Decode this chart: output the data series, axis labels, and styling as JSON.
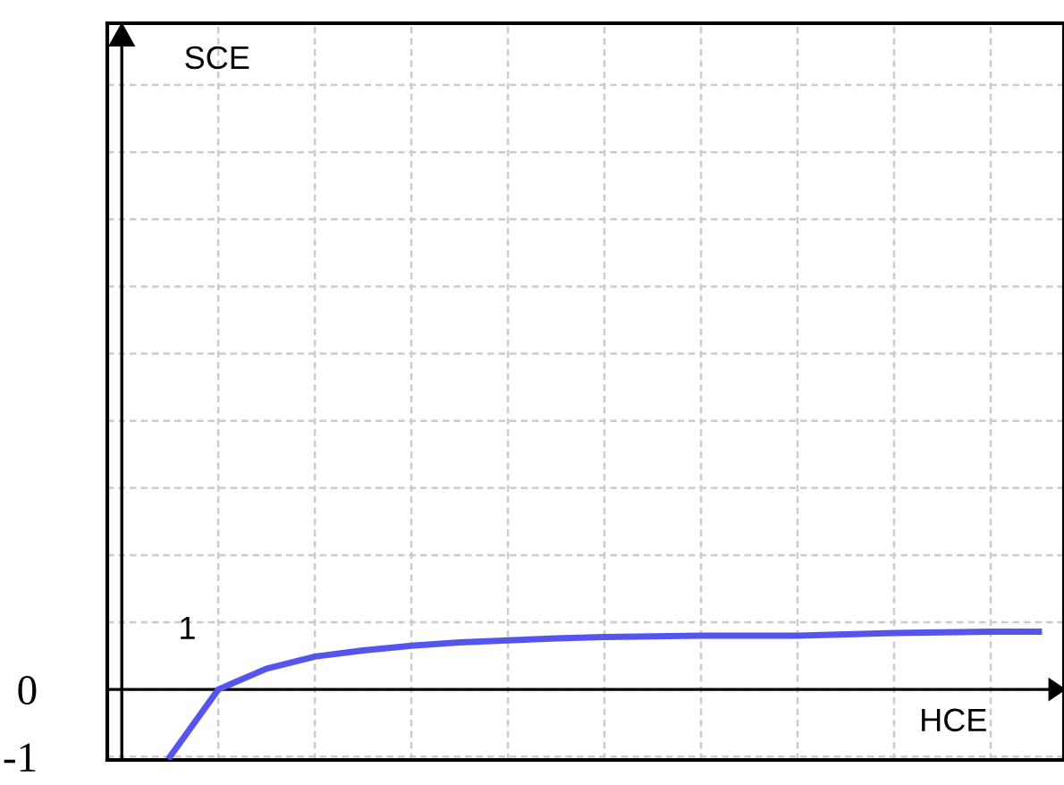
{
  "chart_data": {
    "type": "line",
    "xlabel": "HCE",
    "ylabel": "SCE",
    "annotations": [
      "1"
    ],
    "categories": [
      null,
      null,
      null,
      null,
      null,
      null,
      null,
      null,
      null,
      null,
      null,
      null,
      null,
      null,
      null,
      null,
      null,
      null,
      null,
      null
    ],
    "series": [
      {
        "color": "#5555ee",
        "values": [
          null,
          -1.0,
          0,
          0.31,
          0.49,
          0.58,
          0.65,
          0.7,
          0.73,
          0.76,
          0.78,
          0.79,
          0.8,
          0.8,
          0.8,
          0.82,
          0.84,
          0.85,
          0.86,
          0.86
        ]
      }
    ],
    "ylim": [
      -1.05,
      9.92
    ],
    "yticks": [
      -1,
      0,
      {
        "value": 1,
        "label": null
      },
      {
        "value": 2,
        "label": null
      },
      {
        "value": 3,
        "label": null
      },
      {
        "value": 4,
        "label": null
      },
      {
        "value": 5,
        "label": null
      },
      {
        "value": 6,
        "label": null
      },
      {
        "value": 7,
        "label": null
      },
      {
        "value": 8,
        "label": null
      },
      {
        "value": 9,
        "label": null
      }
    ],
    "tick_labels": "y",
    "grid": true,
    "marker": "none",
    "line_style": "solid",
    "legend": false
  }
}
